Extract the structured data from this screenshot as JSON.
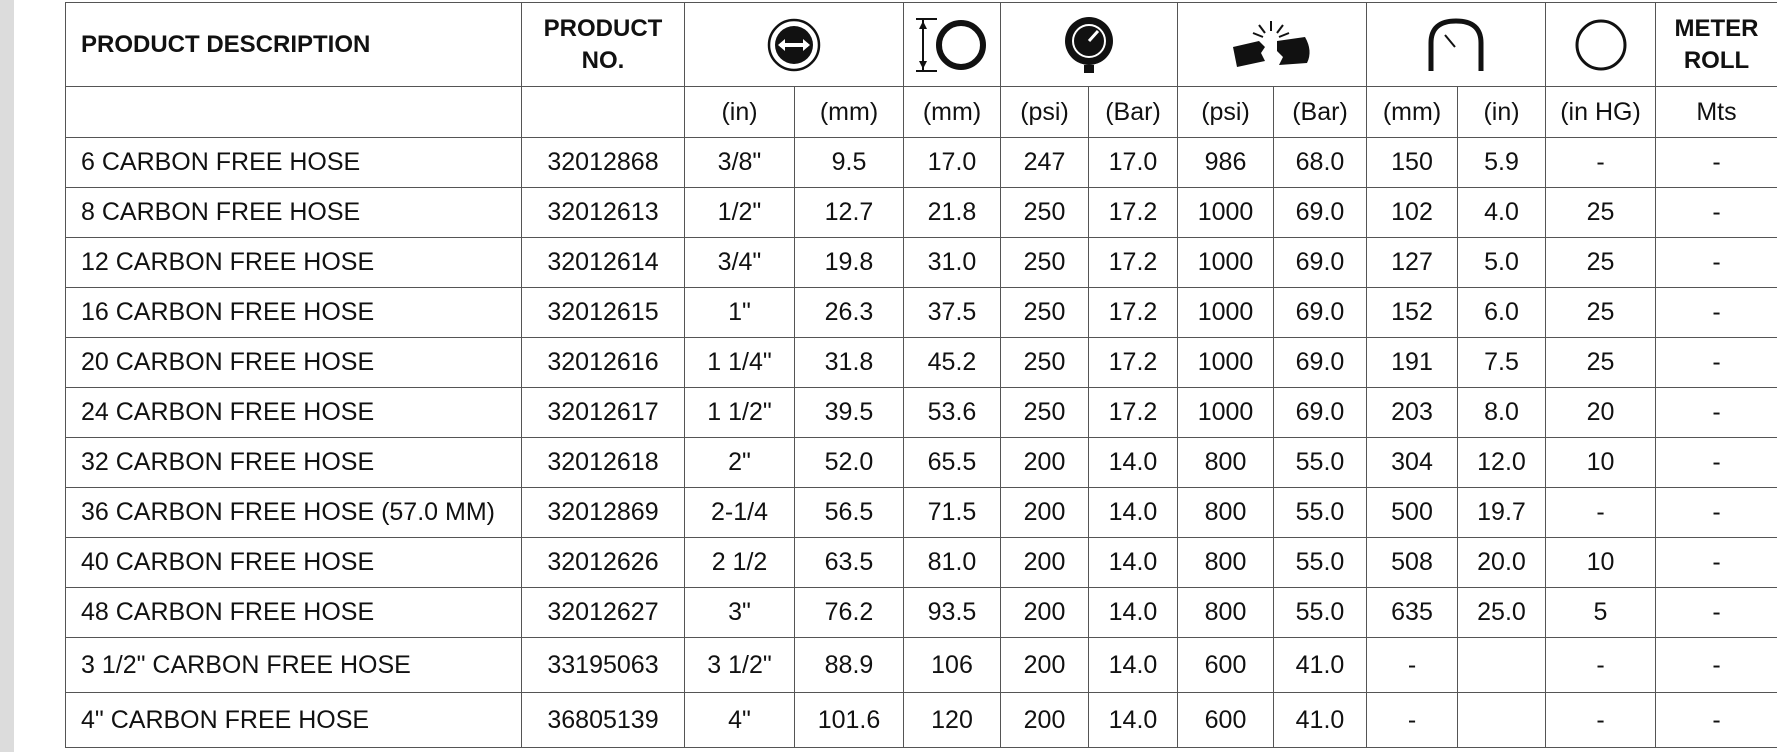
{
  "header": {
    "product_description": "PRODUCT DESCRIPTION",
    "product_no": "PRODUCT NO.",
    "icons": [
      "hose-id-icon",
      "outer-diameter-icon",
      "pressure-gauge-icon",
      "burst-pressure-icon",
      "bend-radius-icon",
      "vacuum-icon"
    ],
    "meter_roll": "METER ROLL"
  },
  "units": [
    "(in)",
    "(mm)",
    "(mm)",
    "(psi)",
    "(Bar)",
    "(psi)",
    "(Bar)",
    "(mm)",
    "(in)",
    "(in HG)",
    "Mts"
  ],
  "rows": [
    {
      "desc": "6 CARBON FREE HOSE",
      "no": "32012868",
      "cells": [
        "3/8\"",
        "9.5",
        "17.0",
        "247",
        "17.0",
        "986",
        "68.0",
        "150",
        "5.9",
        "-",
        "-"
      ]
    },
    {
      "desc": "8 CARBON FREE HOSE",
      "no": "32012613",
      "cells": [
        "1/2\"",
        "12.7",
        "21.8",
        "250",
        "17.2",
        "1000",
        "69.0",
        "102",
        "4.0",
        "25",
        "-"
      ]
    },
    {
      "desc": "12 CARBON FREE HOSE",
      "no": "32012614",
      "cells": [
        "3/4\"",
        "19.8",
        "31.0",
        "250",
        "17.2",
        "1000",
        "69.0",
        "127",
        "5.0",
        "25",
        "-"
      ]
    },
    {
      "desc": "16 CARBON FREE HOSE",
      "no": "32012615",
      "cells": [
        "1\"",
        "26.3",
        "37.5",
        "250",
        "17.2",
        "1000",
        "69.0",
        "152",
        "6.0",
        "25",
        "-"
      ]
    },
    {
      "desc": "20 CARBON FREE HOSE",
      "no": "32012616",
      "cells": [
        "1 1/4\"",
        "31.8",
        "45.2",
        "250",
        "17.2",
        "1000",
        "69.0",
        "191",
        "7.5",
        "25",
        "-"
      ]
    },
    {
      "desc": "24 CARBON FREE HOSE",
      "no": "32012617",
      "cells": [
        "1 1/2\"",
        "39.5",
        "53.6",
        "250",
        "17.2",
        "1000",
        "69.0",
        "203",
        "8.0",
        "20",
        "-"
      ]
    },
    {
      "desc": "32 CARBON FREE HOSE",
      "no": "32012618",
      "cells": [
        "2\"",
        "52.0",
        "65.5",
        "200",
        "14.0",
        "800",
        "55.0",
        "304",
        "12.0",
        "10",
        "-"
      ]
    },
    {
      "desc": "36 CARBON FREE HOSE (57.0 MM)",
      "no": "32012869",
      "cells": [
        "2-1/4",
        "56.5",
        "71.5",
        "200",
        "14.0",
        "800",
        "55.0",
        "500",
        "19.7",
        "-",
        "-"
      ]
    },
    {
      "desc": "40 CARBON FREE HOSE",
      "no": "32012626",
      "cells": [
        "2 1/2",
        "63.5",
        "81.0",
        "200",
        "14.0",
        "800",
        "55.0",
        "508",
        "20.0",
        "10",
        "-"
      ]
    },
    {
      "desc": "48 CARBON FREE HOSE",
      "no": "32012627",
      "cells": [
        "3\"",
        "76.2",
        "93.5",
        "200",
        "14.0",
        "800",
        "55.0",
        "635",
        "25.0",
        "5",
        "-"
      ]
    },
    {
      "desc": "3 1/2\" CARBON FREE HOSE",
      "no": "33195063",
      "cells": [
        "3 1/2\"",
        "88.9",
        "106",
        "200",
        "14.0",
        "600",
        "41.0",
        "-",
        "",
        "-",
        "-"
      ]
    },
    {
      "desc": "4\" CARBON FREE HOSE",
      "no": "36805139",
      "cells": [
        "4\"",
        "101.6",
        "120",
        "200",
        "14.0",
        "600",
        "41.0",
        "-",
        "",
        "-",
        "-"
      ]
    }
  ]
}
